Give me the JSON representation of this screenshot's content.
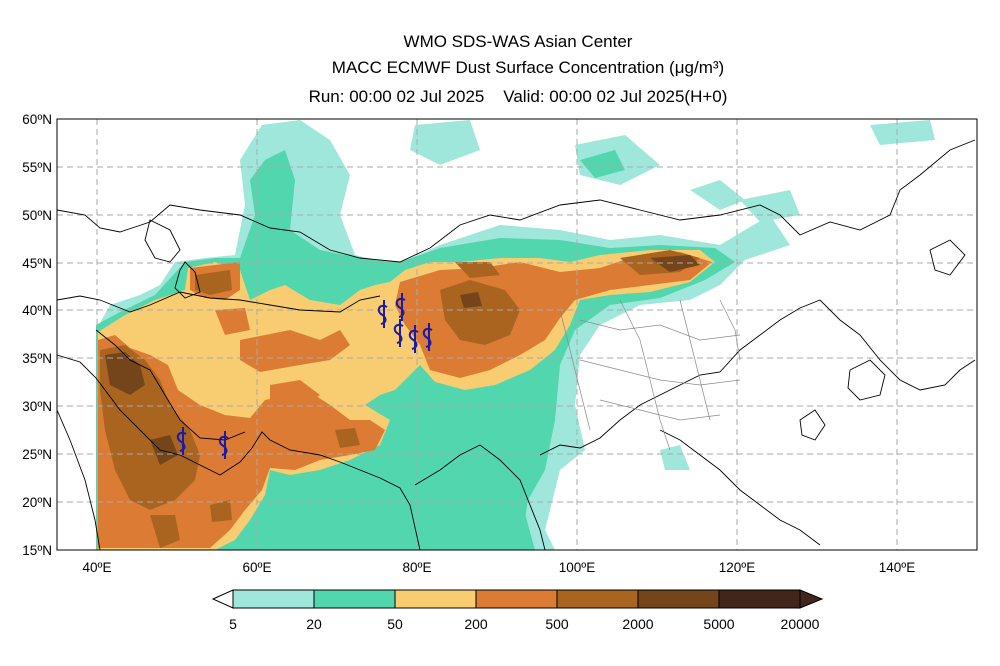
{
  "header": {
    "line1": "WMO SDS-WAS Asian Center",
    "line2": "MACC ECMWF Dust Surface Concentration (μg/m³)",
    "line3": "Run: 00:00 02 Jul 2025    Valid: 00:00 02 Jul 2025(H+0)"
  },
  "map": {
    "lon_range": [
      35,
      150
    ],
    "lat_range": [
      15,
      60
    ],
    "lat_labels": [
      "60ºN",
      "55ºN",
      "50ºN",
      "45ºN",
      "40ºN",
      "35ºN",
      "30ºN",
      "25ºN",
      "20ºN",
      "15ºN"
    ],
    "lon_labels": [
      "40ºE",
      "60ºE",
      "80ºE",
      "100ºE",
      "120ºE",
      "140ºE"
    ],
    "gridlines": true,
    "dust_levels": {
      "colors": [
        "#9ee7da",
        "#52d6ad",
        "#f8cc70",
        "#dc7b34",
        "#a9641f",
        "#74441a",
        "#40261b"
      ],
      "edges": [
        "5",
        "20",
        "50",
        "200",
        "500",
        "2000",
        "5000",
        "20000"
      ]
    }
  }
}
